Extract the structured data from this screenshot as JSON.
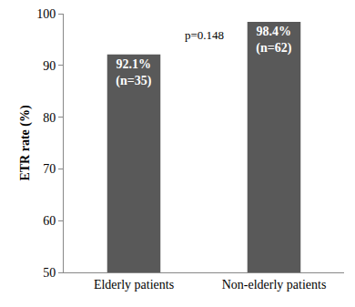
{
  "chart_data": {
    "type": "bar",
    "y_label": "ETR rate (%)",
    "categories": [
      "Elderly patients",
      "Non-elderly patients"
    ],
    "values": [
      92.1,
      98.4
    ],
    "value_labels": [
      "92.1%\n(n=35)",
      "98.4%\n(n=62)"
    ],
    "data_labels": true,
    "color": "#595959",
    "ylim": [
      50,
      100
    ],
    "yticks": [
      50,
      60,
      70,
      80,
      90,
      100
    ],
    "grid": false,
    "annotations": [
      {
        "text": "p=0.148"
      }
    ]
  }
}
